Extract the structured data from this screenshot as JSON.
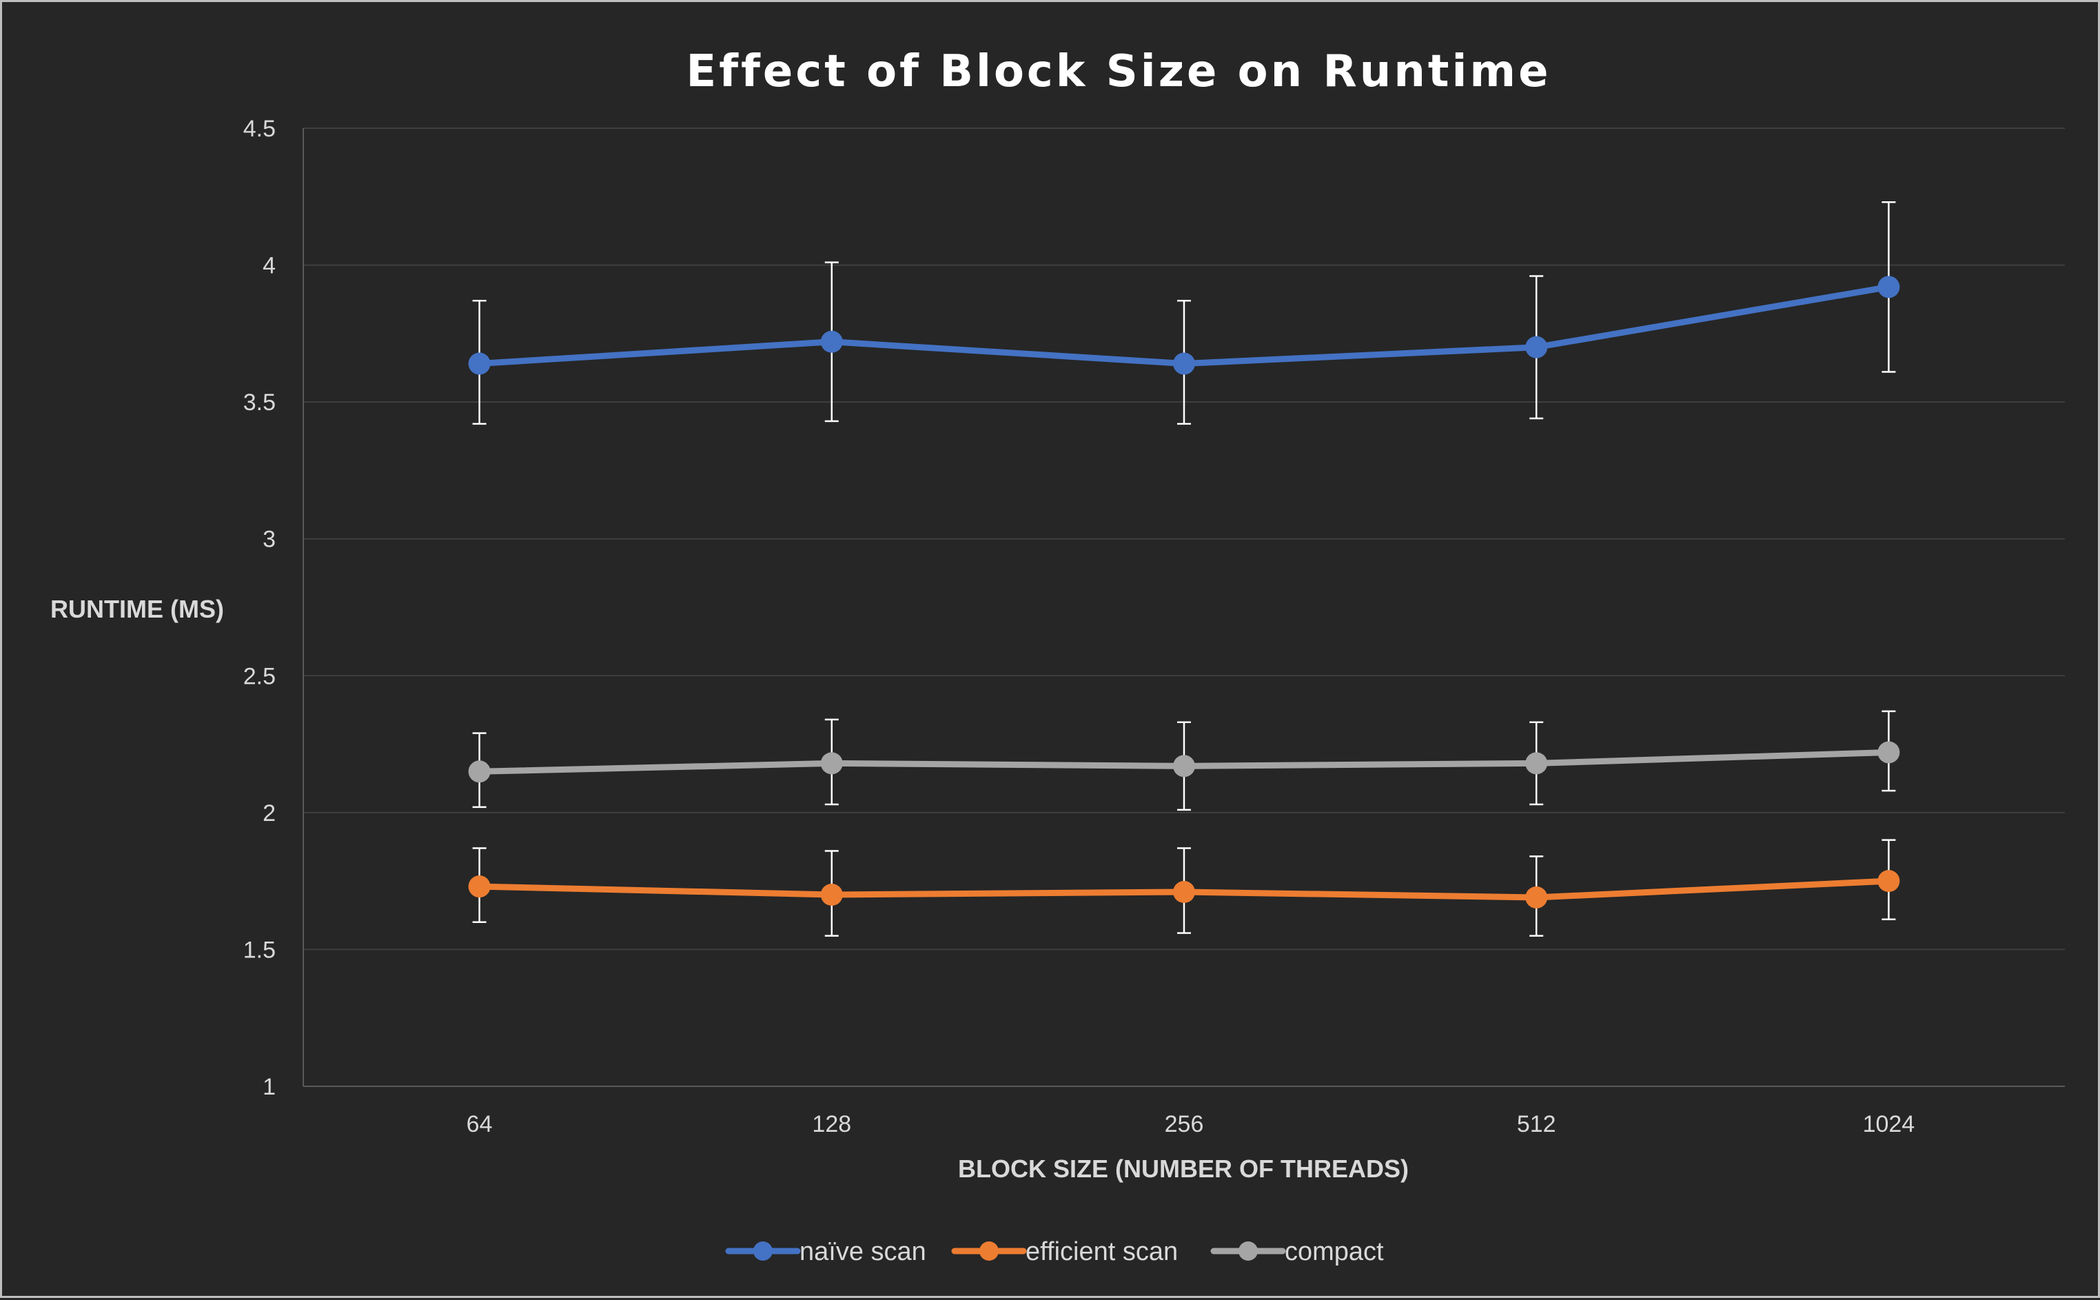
{
  "chart_data": {
    "type": "line",
    "title": "Effect of Block Size on Runtime",
    "xlabel": "BLOCK SIZE (NUMBER OF THREADS)",
    "ylabel": "RUNTIME (MS)",
    "categories": [
      "64",
      "128",
      "256",
      "512",
      "1024"
    ],
    "ylim": [
      1,
      4.5
    ],
    "yticks": [
      "1",
      "1.5",
      "2",
      "2.5",
      "3",
      "3.5",
      "4",
      "4.5"
    ],
    "grid": true,
    "legend_position": "bottom",
    "error_bars": true,
    "series": [
      {
        "name": "naïve scan",
        "color": "#4472c4",
        "values": [
          3.64,
          3.72,
          3.64,
          3.7,
          3.92
        ],
        "err_low": [
          3.42,
          3.43,
          3.42,
          3.44,
          3.61
        ],
        "err_high": [
          3.87,
          4.01,
          3.87,
          3.96,
          4.23
        ]
      },
      {
        "name": "efficient scan",
        "color": "#ed7d31",
        "values": [
          1.73,
          1.7,
          1.71,
          1.69,
          1.75
        ],
        "err_low": [
          1.6,
          1.55,
          1.56,
          1.55,
          1.61
        ],
        "err_high": [
          1.87,
          1.86,
          1.87,
          1.84,
          1.9
        ]
      },
      {
        "name": "compact",
        "color": "#a5a5a5",
        "values": [
          2.15,
          2.18,
          2.17,
          2.18,
          2.22
        ],
        "err_low": [
          2.02,
          2.03,
          2.01,
          2.03,
          2.08
        ],
        "err_high": [
          2.29,
          2.34,
          2.33,
          2.33,
          2.37
        ]
      }
    ]
  }
}
